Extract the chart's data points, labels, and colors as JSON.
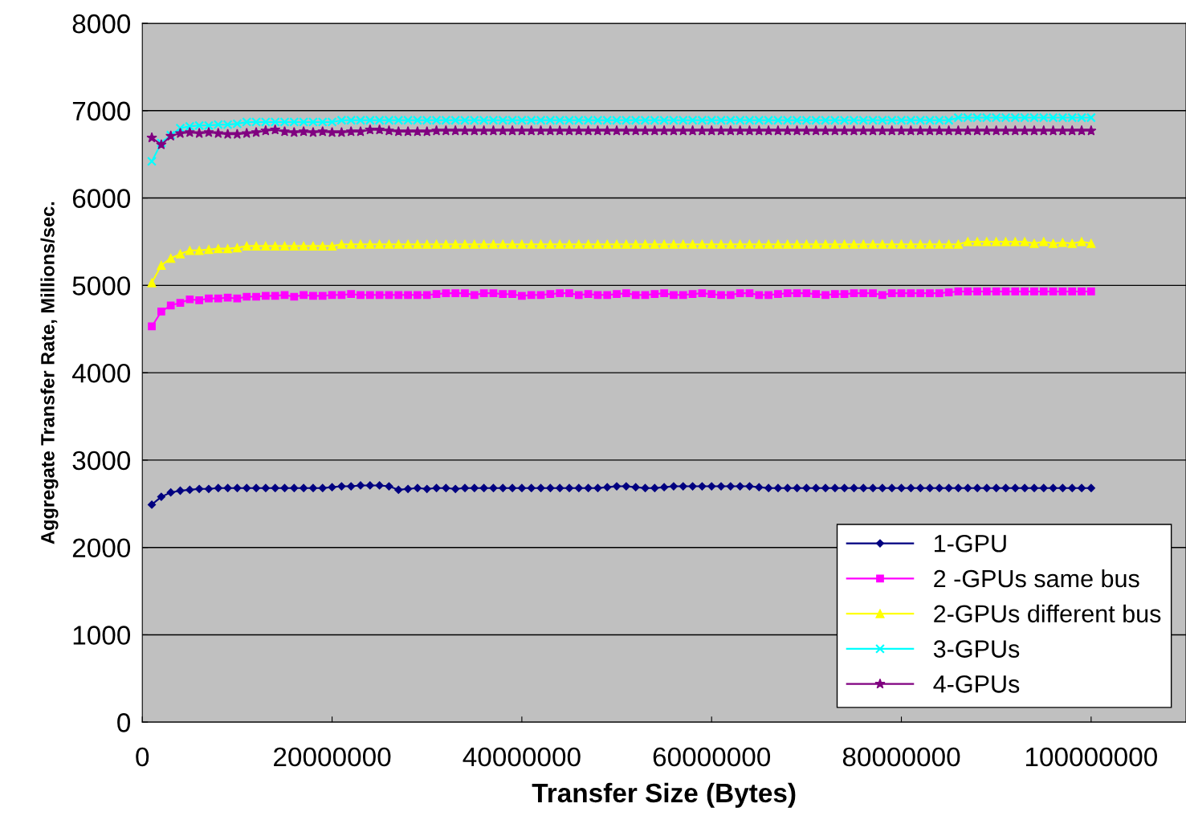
{
  "chart_data": {
    "type": "line",
    "xlabel": "Transfer Size (Bytes)",
    "ylabel": "Aggregate Transfer Rate, Millions/sec.",
    "xlim": [
      0,
      110000000
    ],
    "xticks": [
      0,
      20000000,
      40000000,
      60000000,
      80000000,
      100000000
    ],
    "ylim": [
      0,
      8000
    ],
    "yticks": [
      0,
      1000,
      2000,
      3000,
      4000,
      5000,
      6000,
      7000,
      8000
    ],
    "grid": "y",
    "legend": "bottom right",
    "x": [
      1000000,
      2000000,
      3000000,
      4000000,
      5000000,
      6000000,
      7000000,
      8000000,
      9000000,
      10000000,
      11000000,
      12000000,
      13000000,
      14000000,
      15000000,
      16000000,
      17000000,
      18000000,
      19000000,
      20000000,
      21000000,
      22000000,
      23000000,
      24000000,
      25000000,
      26000000,
      27000000,
      28000000,
      29000000,
      30000000,
      31000000,
      32000000,
      33000000,
      34000000,
      35000000,
      36000000,
      37000000,
      38000000,
      39000000,
      40000000,
      41000000,
      42000000,
      43000000,
      44000000,
      45000000,
      46000000,
      47000000,
      48000000,
      49000000,
      50000000,
      51000000,
      52000000,
      53000000,
      54000000,
      55000000,
      56000000,
      57000000,
      58000000,
      59000000,
      60000000,
      61000000,
      62000000,
      63000000,
      64000000,
      65000000,
      66000000,
      67000000,
      68000000,
      69000000,
      70000000,
      71000000,
      72000000,
      73000000,
      74000000,
      75000000,
      76000000,
      77000000,
      78000000,
      79000000,
      80000000,
      81000000,
      82000000,
      83000000,
      84000000,
      85000000,
      86000000,
      87000000,
      88000000,
      89000000,
      90000000,
      91000000,
      92000000,
      93000000,
      94000000,
      95000000,
      96000000,
      97000000,
      98000000,
      99000000,
      100000000
    ],
    "series": [
      {
        "name": "1-GPU",
        "color": "#000080",
        "marker": "diamond",
        "values": [
          2490,
          2580,
          2630,
          2650,
          2660,
          2670,
          2670,
          2680,
          2680,
          2680,
          2680,
          2680,
          2680,
          2680,
          2680,
          2680,
          2680,
          2680,
          2680,
          2690,
          2700,
          2700,
          2710,
          2710,
          2710,
          2700,
          2660,
          2670,
          2680,
          2670,
          2680,
          2680,
          2670,
          2680,
          2680,
          2680,
          2680,
          2680,
          2680,
          2680,
          2680,
          2680,
          2680,
          2680,
          2680,
          2680,
          2680,
          2680,
          2690,
          2700,
          2700,
          2690,
          2680,
          2680,
          2690,
          2700,
          2700,
          2700,
          2700,
          2700,
          2700,
          2700,
          2700,
          2700,
          2690,
          2680,
          2680,
          2680,
          2680,
          2680,
          2680,
          2680,
          2680,
          2680,
          2680,
          2680,
          2680,
          2680,
          2680,
          2680,
          2680,
          2680,
          2680,
          2680,
          2680,
          2680,
          2680,
          2680,
          2680,
          2680,
          2680,
          2680,
          2680,
          2680,
          2680,
          2680,
          2680,
          2680,
          2680,
          2680
        ]
      },
      {
        "name": "2 -GPUs same bus",
        "color": "#ff00ff",
        "marker": "square",
        "values": [
          4530,
          4700,
          4770,
          4800,
          4840,
          4830,
          4850,
          4850,
          4860,
          4850,
          4870,
          4870,
          4880,
          4880,
          4890,
          4870,
          4890,
          4880,
          4880,
          4890,
          4890,
          4900,
          4890,
          4890,
          4890,
          4890,
          4890,
          4890,
          4890,
          4890,
          4900,
          4910,
          4910,
          4910,
          4890,
          4910,
          4910,
          4900,
          4900,
          4880,
          4890,
          4890,
          4900,
          4910,
          4910,
          4890,
          4900,
          4890,
          4890,
          4900,
          4910,
          4890,
          4890,
          4900,
          4910,
          4890,
          4890,
          4900,
          4910,
          4900,
          4890,
          4890,
          4910,
          4910,
          4890,
          4890,
          4900,
          4910,
          4910,
          4910,
          4900,
          4890,
          4900,
          4900,
          4910,
          4910,
          4910,
          4890,
          4910,
          4910,
          4910,
          4910,
          4910,
          4910,
          4920,
          4930,
          4930,
          4930,
          4930,
          4930,
          4930,
          4930,
          4930,
          4930,
          4930,
          4930,
          4930,
          4930,
          4930,
          4930
        ]
      },
      {
        "name": "2-GPUs different bus",
        "color": "#ffff00",
        "marker": "triangle",
        "values": [
          5030,
          5230,
          5310,
          5360,
          5400,
          5400,
          5410,
          5420,
          5420,
          5430,
          5450,
          5450,
          5450,
          5450,
          5450,
          5450,
          5450,
          5450,
          5450,
          5450,
          5470,
          5470,
          5470,
          5470,
          5470,
          5470,
          5470,
          5470,
          5470,
          5470,
          5470,
          5470,
          5470,
          5470,
          5470,
          5470,
          5470,
          5470,
          5470,
          5470,
          5470,
          5470,
          5470,
          5470,
          5470,
          5470,
          5470,
          5470,
          5470,
          5470,
          5470,
          5470,
          5470,
          5470,
          5470,
          5470,
          5470,
          5470,
          5470,
          5470,
          5470,
          5470,
          5470,
          5470,
          5470,
          5470,
          5470,
          5470,
          5470,
          5470,
          5470,
          5470,
          5470,
          5470,
          5470,
          5470,
          5470,
          5470,
          5470,
          5470,
          5470,
          5470,
          5470,
          5470,
          5470,
          5470,
          5500,
          5500,
          5500,
          5500,
          5500,
          5500,
          5500,
          5480,
          5500,
          5480,
          5490,
          5480,
          5500,
          5480
        ]
      },
      {
        "name": "3-GPUs",
        "color": "#00ffff",
        "marker": "cross",
        "values": [
          6420,
          6630,
          6720,
          6800,
          6820,
          6830,
          6830,
          6840,
          6840,
          6850,
          6870,
          6870,
          6870,
          6870,
          6870,
          6870,
          6870,
          6870,
          6870,
          6870,
          6890,
          6890,
          6890,
          6890,
          6890,
          6890,
          6890,
          6890,
          6890,
          6890,
          6890,
          6890,
          6890,
          6890,
          6890,
          6890,
          6890,
          6890,
          6890,
          6890,
          6890,
          6890,
          6890,
          6890,
          6890,
          6890,
          6890,
          6890,
          6890,
          6890,
          6890,
          6890,
          6890,
          6890,
          6890,
          6890,
          6890,
          6890,
          6890,
          6890,
          6890,
          6890,
          6890,
          6890,
          6890,
          6890,
          6890,
          6890,
          6890,
          6890,
          6890,
          6890,
          6890,
          6890,
          6890,
          6890,
          6890,
          6890,
          6890,
          6890,
          6890,
          6890,
          6890,
          6890,
          6890,
          6920,
          6920,
          6920,
          6920,
          6920,
          6920,
          6920,
          6920,
          6920,
          6920,
          6920,
          6920,
          6920,
          6920,
          6920
        ]
      },
      {
        "name": "4-GPUs",
        "color": "#800080",
        "marker": "star",
        "values": [
          6690,
          6610,
          6710,
          6740,
          6750,
          6740,
          6750,
          6740,
          6730,
          6730,
          6740,
          6750,
          6770,
          6780,
          6760,
          6750,
          6760,
          6750,
          6760,
          6750,
          6750,
          6760,
          6760,
          6780,
          6780,
          6770,
          6760,
          6760,
          6760,
          6760,
          6770,
          6770,
          6770,
          6770,
          6770,
          6770,
          6770,
          6770,
          6770,
          6770,
          6770,
          6770,
          6770,
          6770,
          6770,
          6770,
          6770,
          6770,
          6770,
          6770,
          6770,
          6770,
          6770,
          6770,
          6770,
          6770,
          6770,
          6770,
          6770,
          6770,
          6770,
          6770,
          6770,
          6770,
          6770,
          6770,
          6770,
          6770,
          6770,
          6770,
          6770,
          6770,
          6770,
          6770,
          6770,
          6770,
          6770,
          6770,
          6770,
          6770,
          6770,
          6770,
          6770,
          6770,
          6770,
          6770,
          6770,
          6770,
          6770,
          6770,
          6770,
          6770,
          6770,
          6770,
          6770,
          6770,
          6770,
          6770,
          6770,
          6770
        ]
      }
    ]
  }
}
